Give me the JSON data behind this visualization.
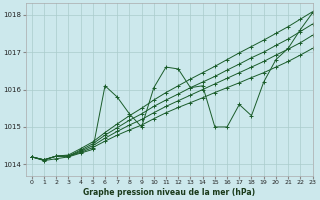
{
  "title": "Graphe pression niveau de la mer (hPa)",
  "background_color": "#cce8ec",
  "grid_color": "#aacccc",
  "line_color": "#1a5c2a",
  "xlim": [
    -0.5,
    23
  ],
  "ylim": [
    1013.7,
    1018.3
  ],
  "xticks": [
    0,
    1,
    2,
    3,
    4,
    5,
    6,
    7,
    8,
    9,
    10,
    11,
    12,
    13,
    14,
    15,
    16,
    17,
    18,
    19,
    20,
    21,
    22,
    23
  ],
  "yticks": [
    1014,
    1015,
    1016,
    1017,
    1018
  ],
  "series_volatile": [
    1014.2,
    1014.1,
    1014.15,
    1014.2,
    1014.3,
    1014.4,
    1016.1,
    1015.8,
    1015.35,
    1015.0,
    1016.05,
    1016.6,
    1016.55,
    1016.05,
    1016.1,
    1015.0,
    1015.0,
    1015.6,
    1015.3,
    1016.2,
    1016.8,
    1017.1,
    1017.6,
    1018.05
  ],
  "series_linear1": [
    1014.2,
    1014.12,
    1014.22,
    1014.22,
    1014.32,
    1014.45,
    1014.62,
    1014.78,
    1014.92,
    1015.05,
    1015.22,
    1015.38,
    1015.52,
    1015.65,
    1015.78,
    1015.92,
    1016.05,
    1016.18,
    1016.32,
    1016.45,
    1016.6,
    1016.75,
    1016.92,
    1017.1
  ],
  "series_linear2": [
    1014.2,
    1014.12,
    1014.22,
    1014.22,
    1014.35,
    1014.5,
    1014.7,
    1014.88,
    1015.05,
    1015.2,
    1015.38,
    1015.55,
    1015.7,
    1015.85,
    1016.0,
    1016.15,
    1016.3,
    1016.45,
    1016.6,
    1016.75,
    1016.92,
    1017.08,
    1017.25,
    1017.45
  ],
  "series_linear3": [
    1014.2,
    1014.12,
    1014.22,
    1014.22,
    1014.38,
    1014.55,
    1014.78,
    1014.98,
    1015.18,
    1015.35,
    1015.55,
    1015.72,
    1015.88,
    1016.05,
    1016.2,
    1016.35,
    1016.52,
    1016.68,
    1016.85,
    1017.0,
    1017.18,
    1017.35,
    1017.55,
    1017.75
  ],
  "series_top": [
    1014.2,
    1014.12,
    1014.22,
    1014.25,
    1014.42,
    1014.6,
    1014.85,
    1015.08,
    1015.3,
    1015.5,
    1015.72,
    1015.92,
    1016.1,
    1016.28,
    1016.45,
    1016.62,
    1016.8,
    1016.98,
    1017.15,
    1017.32,
    1017.5,
    1017.68,
    1017.88,
    1018.08
  ]
}
